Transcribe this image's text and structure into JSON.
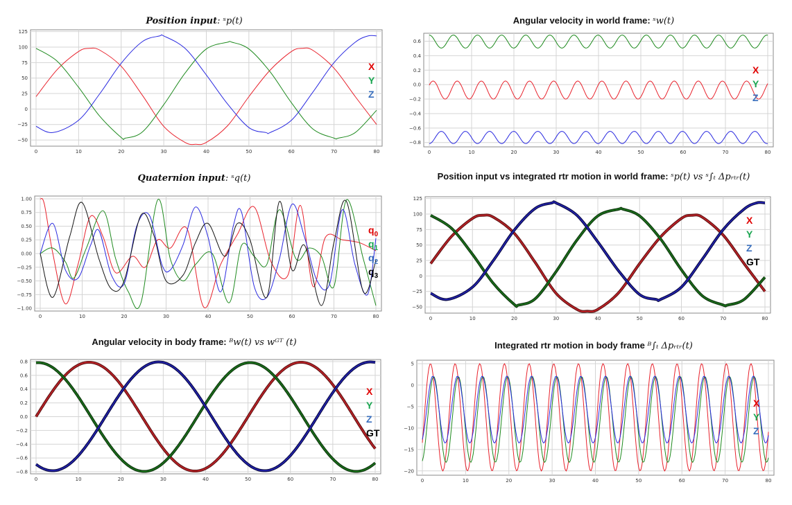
{
  "titles": {
    "p1_prefix": "Position input",
    "p1_math": ": ˢp(t)",
    "p2_prefix": "Angular velocity in world frame: ",
    "p2_math": "ˢw(t)",
    "p3_prefix": "Quaternion input",
    "p3_math": ": ˢq(t)",
    "p4_prefix": "Position input vs integrated rtr motion in world frame: ",
    "p4_math": "ˢp(t) vs ˢ∫ₜ Δpᵣₜᵣ(t)",
    "p5_prefix": "Angular velocity in body frame: ",
    "p5_math": "ᴮw(t) vs  wᴳᵀ (t)",
    "p6_prefix": "Integrated rtr motion in body frame ",
    "p6_math": "ᴮ∫ₜ Δpᵣₜᵣ(t)"
  },
  "legends": {
    "xyz": [
      "X",
      "Y",
      "Z"
    ],
    "xyzgt": [
      "X",
      "Y",
      "Z",
      "GT"
    ],
    "quat": [
      {
        "base": "q",
        "sub": "0"
      },
      {
        "base": "q",
        "sub": "1"
      },
      {
        "base": "q",
        "sub": "2"
      },
      {
        "base": "q",
        "sub": "3"
      }
    ]
  },
  "colors": {
    "red": "#e8212b",
    "green": "#1e8a1e",
    "blue": "#2a2ae0",
    "black": "#111111",
    "legend_red": "#e00000",
    "legend_green": "#19a550",
    "legend_blue": "#3a6fbd",
    "legend_black": "#000000",
    "gt_red": "#6b1a1a",
    "gt_green": "#123d12",
    "gt_blue": "#101050"
  },
  "chart_data": [
    {
      "id": "p1",
      "type": "line",
      "xlim": [
        0,
        80
      ],
      "ylim": [
        -60,
        128
      ],
      "xticks": [
        0,
        10,
        20,
        30,
        40,
        50,
        60,
        70,
        80
      ],
      "yticks": [
        125,
        100,
        75,
        50,
        25,
        0,
        -25,
        -50
      ],
      "series": [
        {
          "color": "red",
          "x": [
            0,
            5,
            10,
            12.5,
            15,
            20,
            25,
            30,
            35,
            37.5,
            40,
            45,
            50,
            55,
            60,
            62.5,
            65,
            70,
            75,
            80
          ],
          "y": [
            20,
            64,
            93,
            98,
            95,
            69,
            22,
            -28,
            -54,
            -57,
            -54,
            -27,
            20,
            63,
            93,
            98,
            95,
            66,
            20,
            -25
          ]
        },
        {
          "color": "green",
          "x": [
            0,
            5,
            10,
            15,
            20,
            21,
            25,
            30,
            35,
            40,
            45,
            46,
            50,
            55,
            60,
            65,
            70,
            71,
            75,
            80
          ],
          "y": [
            98,
            77,
            35,
            -12,
            -46,
            -47,
            -37,
            7,
            58,
            97,
            108,
            108,
            97,
            60,
            10,
            -32,
            -47,
            -47,
            -38,
            -2
          ]
        },
        {
          "color": "blue",
          "x": [
            0,
            4,
            10,
            15,
            20,
            25,
            29,
            30,
            35,
            40,
            45,
            50,
            54,
            55,
            60,
            65,
            70,
            75,
            78,
            80
          ],
          "y": [
            -28,
            -38,
            -18,
            25,
            74,
            109,
            118,
            118,
            98,
            55,
            8,
            -30,
            -38,
            -38,
            -18,
            27,
            75,
            108,
            118,
            118
          ]
        }
      ]
    },
    {
      "id": "p2",
      "type": "line",
      "xlim": [
        0,
        80
      ],
      "ylim": [
        -0.86,
        0.71
      ],
      "xticks": [
        0,
        10,
        20,
        30,
        40,
        50,
        60,
        70,
        80
      ],
      "yticks": [
        0.6,
        0.4,
        0.2,
        0.0,
        -0.2,
        -0.4,
        -0.6,
        -0.8
      ],
      "series": [
        {
          "color": "green",
          "formula": "0.595 + 0.09*cos(2*pi*x/5.7)"
        },
        {
          "color": "red",
          "formula": "-0.075 + 0.125*cos(2*pi*(x-0.9)/5.7)"
        },
        {
          "color": "blue",
          "formula": "-0.73 - 0.085*cos(2*pi*x/5.7)"
        }
      ]
    },
    {
      "id": "p3",
      "type": "line",
      "xlim": [
        0,
        80
      ],
      "ylim": [
        -1.05,
        1.05
      ],
      "xticks": [
        0,
        10,
        20,
        30,
        40,
        50,
        60,
        70,
        80
      ],
      "yticks": [
        1.0,
        0.75,
        0.5,
        0.25,
        0.0,
        -0.25,
        -0.5,
        -0.75,
        -1.0
      ],
      "series": [
        {
          "color": "red",
          "x": [
            0,
            1,
            3,
            6,
            9,
            12,
            15,
            18,
            22,
            25,
            28,
            31,
            35,
            39,
            43,
            47,
            51,
            55,
            59,
            62,
            65,
            68,
            72,
            76,
            80
          ],
          "y": [
            1.0,
            0.9,
            0.0,
            -0.92,
            -0.2,
            0.68,
            0.3,
            -0.35,
            -0.05,
            -0.25,
            0.25,
            0.1,
            0.45,
            -0.98,
            -0.2,
            0.35,
            0.85,
            -0.15,
            -0.4,
            0.88,
            -0.6,
            0.3,
            0.25,
            0.2,
            0.05
          ]
        },
        {
          "color": "green",
          "x": [
            0,
            3,
            6,
            8,
            11,
            15,
            18,
            21,
            24,
            28,
            31,
            34,
            37,
            41,
            45,
            48,
            51,
            54,
            57,
            61,
            64,
            67,
            70,
            73,
            77,
            80
          ],
          "y": [
            0,
            0.1,
            -0.15,
            -0.45,
            0.1,
            0.78,
            -0.1,
            -0.7,
            -0.9,
            0.98,
            -0.1,
            -0.5,
            -0.2,
            0.0,
            -0.9,
            0.15,
            -0.05,
            -0.2,
            0.8,
            -0.1,
            0.1,
            -0.05,
            -0.6,
            0.98,
            -0.1,
            -0.95
          ]
        },
        {
          "color": "blue",
          "x": [
            0,
            3,
            6,
            9,
            12,
            14,
            17,
            20,
            23,
            26,
            29,
            31,
            34,
            37,
            40,
            43,
            46,
            48,
            51,
            54,
            57,
            60,
            63,
            66,
            69,
            72,
            75,
            78,
            80
          ],
          "y": [
            0,
            0.55,
            -0.3,
            -0.45,
            0.15,
            0.42,
            -0.4,
            -0.55,
            0.5,
            0.7,
            -0.2,
            -0.3,
            0.15,
            0.85,
            0.3,
            -0.7,
            0.5,
            0.75,
            -0.6,
            -0.8,
            -0.1,
            0.9,
            0.3,
            -0.5,
            -0.55,
            0.8,
            -0.2,
            -0.75,
            0.28
          ]
        },
        {
          "color": "black",
          "x": [
            0,
            3,
            7,
            10,
            14,
            17,
            20,
            24,
            27,
            30,
            34,
            37,
            40,
            44,
            47,
            50,
            54,
            57,
            60,
            63,
            67,
            70,
            73,
            77,
            80
          ],
          "y": [
            0,
            -0.8,
            0.3,
            0.93,
            -0.1,
            -0.65,
            -0.5,
            0.7,
            0.35,
            -0.5,
            -0.4,
            0.2,
            0.55,
            -0.05,
            0.55,
            0.25,
            -0.8,
            0.95,
            -0.3,
            0.15,
            -0.95,
            0.2,
            0.95,
            -0.7,
            -0.12
          ]
        }
      ]
    },
    {
      "id": "p4",
      "type": "line",
      "xlim": [
        0,
        80
      ],
      "ylim": [
        -60,
        128
      ],
      "xticks": [
        0,
        10,
        20,
        30,
        40,
        50,
        60,
        70,
        80
      ],
      "yticks": [
        125,
        100,
        75,
        50,
        25,
        0,
        -25,
        -50
      ],
      "series": [
        {
          "color": "red",
          "gt": "gt_red",
          "x": [
            0,
            5,
            10,
            12.5,
            15,
            20,
            25,
            30,
            35,
            37.5,
            40,
            45,
            50,
            55,
            60,
            62.5,
            65,
            70,
            75,
            80
          ],
          "y": [
            20,
            64,
            93,
            98,
            95,
            69,
            22,
            -28,
            -54,
            -57,
            -54,
            -27,
            20,
            63,
            93,
            98,
            95,
            66,
            20,
            -25
          ]
        },
        {
          "color": "green",
          "gt": "gt_green",
          "x": [
            0,
            5,
            10,
            15,
            20,
            21,
            25,
            30,
            35,
            40,
            45,
            46,
            50,
            55,
            60,
            65,
            70,
            71,
            75,
            80
          ],
          "y": [
            98,
            77,
            35,
            -12,
            -46,
            -47,
            -37,
            7,
            58,
            97,
            108,
            108,
            97,
            60,
            10,
            -32,
            -47,
            -47,
            -38,
            -2
          ]
        },
        {
          "color": "blue",
          "gt": "gt_blue",
          "x": [
            0,
            4,
            10,
            15,
            20,
            25,
            29,
            30,
            35,
            40,
            45,
            50,
            54,
            55,
            60,
            65,
            70,
            75,
            78,
            80
          ],
          "y": [
            -28,
            -38,
            -18,
            25,
            74,
            109,
            118,
            118,
            98,
            55,
            8,
            -30,
            -38,
            -38,
            -18,
            27,
            75,
            108,
            118,
            118
          ]
        }
      ]
    },
    {
      "id": "p5",
      "type": "line",
      "xlim": [
        0,
        80
      ],
      "ylim": [
        -0.83,
        0.83
      ],
      "xticks": [
        0,
        10,
        20,
        30,
        40,
        50,
        60,
        70,
        80
      ],
      "yticks": [
        0.8,
        0.6,
        0.4,
        0.2,
        0.0,
        -0.2,
        -0.4,
        -0.6,
        -0.8
      ],
      "series": [
        {
          "color": "red",
          "gt": "gt_red",
          "formula": "0.79*sin(2*pi*x/50)"
        },
        {
          "color": "green",
          "gt": "gt_green",
          "formula": "0.79*sin(2*pi*(x+12)/50) - 0.005"
        },
        {
          "color": "blue",
          "gt": "gt_blue",
          "formula": "-0.79*sin(2*pi*(x+8.6)/50) + 0.005"
        }
      ]
    },
    {
      "id": "p6",
      "type": "line",
      "xlim": [
        0,
        80
      ],
      "ylim": [
        -21,
        5.8
      ],
      "xticks": [
        0,
        10,
        20,
        30,
        40,
        50,
        60,
        70,
        80
      ],
      "yticks": [
        5,
        0,
        -5,
        -10,
        -15,
        -20
      ],
      "series": [
        {
          "color": "red",
          "formula": "-7.5 + 12.5*sin(2*pi*(x-0.45)/5.7)"
        },
        {
          "color": "green",
          "formula": "-8 + 10*sin(2*pi*(x-1.2)/5.7)"
        },
        {
          "color": "blue",
          "formula": "-5.7 + 7.8*sin(2*pi*(x-1.0)/5.7)"
        }
      ]
    }
  ]
}
